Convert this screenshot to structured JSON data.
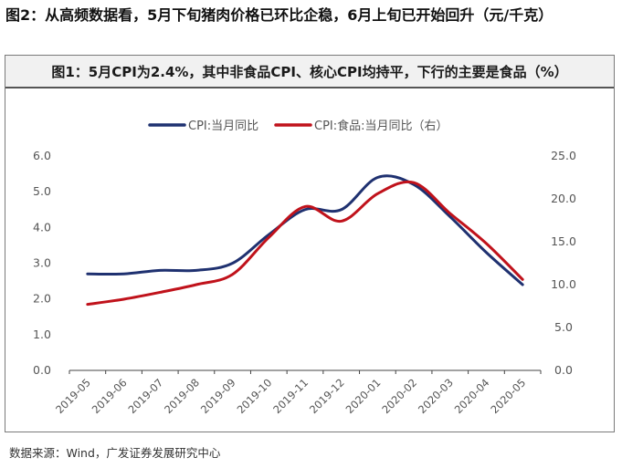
{
  "outer_title": "图2：从高频数据看，5月下旬猪肉价格已环比企稳，6月上旬已开始回升（元/千克）",
  "source": "数据来源：Wind，广发证券发展研究中心",
  "chart_data": {
    "type": "line",
    "title": "图1：5月CPI为2.4%，其中非食品CPI、核心CPI均持平，下行的主要是食品（%）",
    "categories": [
      "2019-05",
      "2019-06",
      "2019-07",
      "2019-08",
      "2019-09",
      "2019-10",
      "2019-11",
      "2019-12",
      "2020-01",
      "2020-02",
      "2020-03",
      "2020-04",
      "2020-05"
    ],
    "y_left": {
      "range": [
        0,
        6
      ],
      "ticks": [
        "0.0",
        "1.0",
        "2.0",
        "3.0",
        "4.0",
        "5.0",
        "6.0"
      ]
    },
    "y_right": {
      "range": [
        0,
        25
      ],
      "ticks": [
        "0.0",
        "5.0",
        "10.0",
        "15.0",
        "20.0",
        "25.0"
      ]
    },
    "series": [
      {
        "name": "CPI:当月同比",
        "axis": "left",
        "color": "#1f3170",
        "values": [
          2.7,
          2.7,
          2.8,
          2.8,
          3.0,
          3.8,
          4.5,
          4.5,
          5.4,
          5.2,
          4.3,
          3.3,
          2.4
        ]
      },
      {
        "name": "CPI:食品:当月同比（右）",
        "axis": "right",
        "color": "#c0121b",
        "values": [
          7.7,
          8.3,
          9.1,
          10.0,
          11.2,
          15.5,
          19.1,
          17.4,
          20.6,
          21.9,
          18.3,
          14.8,
          10.6
        ]
      }
    ],
    "grid": false,
    "legend": "top-center"
  }
}
